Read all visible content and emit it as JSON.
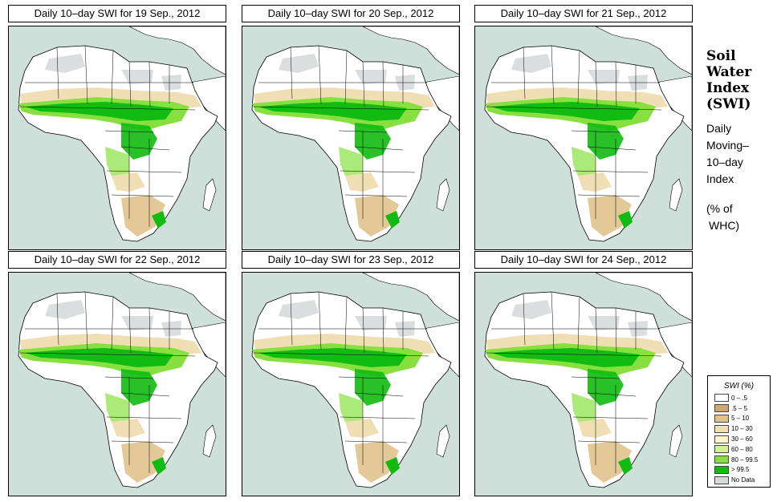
{
  "panels": [
    {
      "title": "Daily 10–day SWI for  19 Sep., 2012"
    },
    {
      "title": "Daily 10–day SWI for  20 Sep., 2012"
    },
    {
      "title": "Daily 10–day SWI for  21 Sep., 2012"
    },
    {
      "title": "Daily 10–day SWI for  22 Sep., 2012"
    },
    {
      "title": "Daily 10–day SWI for  23 Sep., 2012"
    },
    {
      "title": "Daily 10–day SWI for  24 Sep., 2012"
    }
  ],
  "side": {
    "title_lines": [
      "Soil",
      "Water",
      "Index",
      "(SWI)"
    ],
    "desc_lines": [
      "Daily",
      "Moving–",
      "10–day",
      "Index"
    ],
    "unit_lines": [
      "(% of",
      "WHC)"
    ]
  },
  "legend": {
    "title": "SWI (%)",
    "items": [
      {
        "label": "0 – .5",
        "color": "#ffffff"
      },
      {
        "label": ".5 – 5",
        "color": "#cfa871"
      },
      {
        "label": "5 – 10",
        "color": "#e0c38c"
      },
      {
        "label": "10 – 30",
        "color": "#f0deb4"
      },
      {
        "label": "30 – 60",
        "color": "#fbf3cc"
      },
      {
        "label": "60 – 80",
        "color": "#d7ef9a"
      },
      {
        "label": "80 – 99.5",
        "color": "#88e040"
      },
      {
        "label": "> 99.5",
        "color": "#11bb11"
      },
      {
        "label": "No Data",
        "color": "#d6dada"
      }
    ]
  },
  "colors": {
    "ocean": "#cfe0da",
    "land": "#ffffff",
    "dry": "#e0c38c",
    "wet": "#88e040",
    "saturated": "#11bb11",
    "nodata": "#d6dada",
    "border": "#000000"
  }
}
